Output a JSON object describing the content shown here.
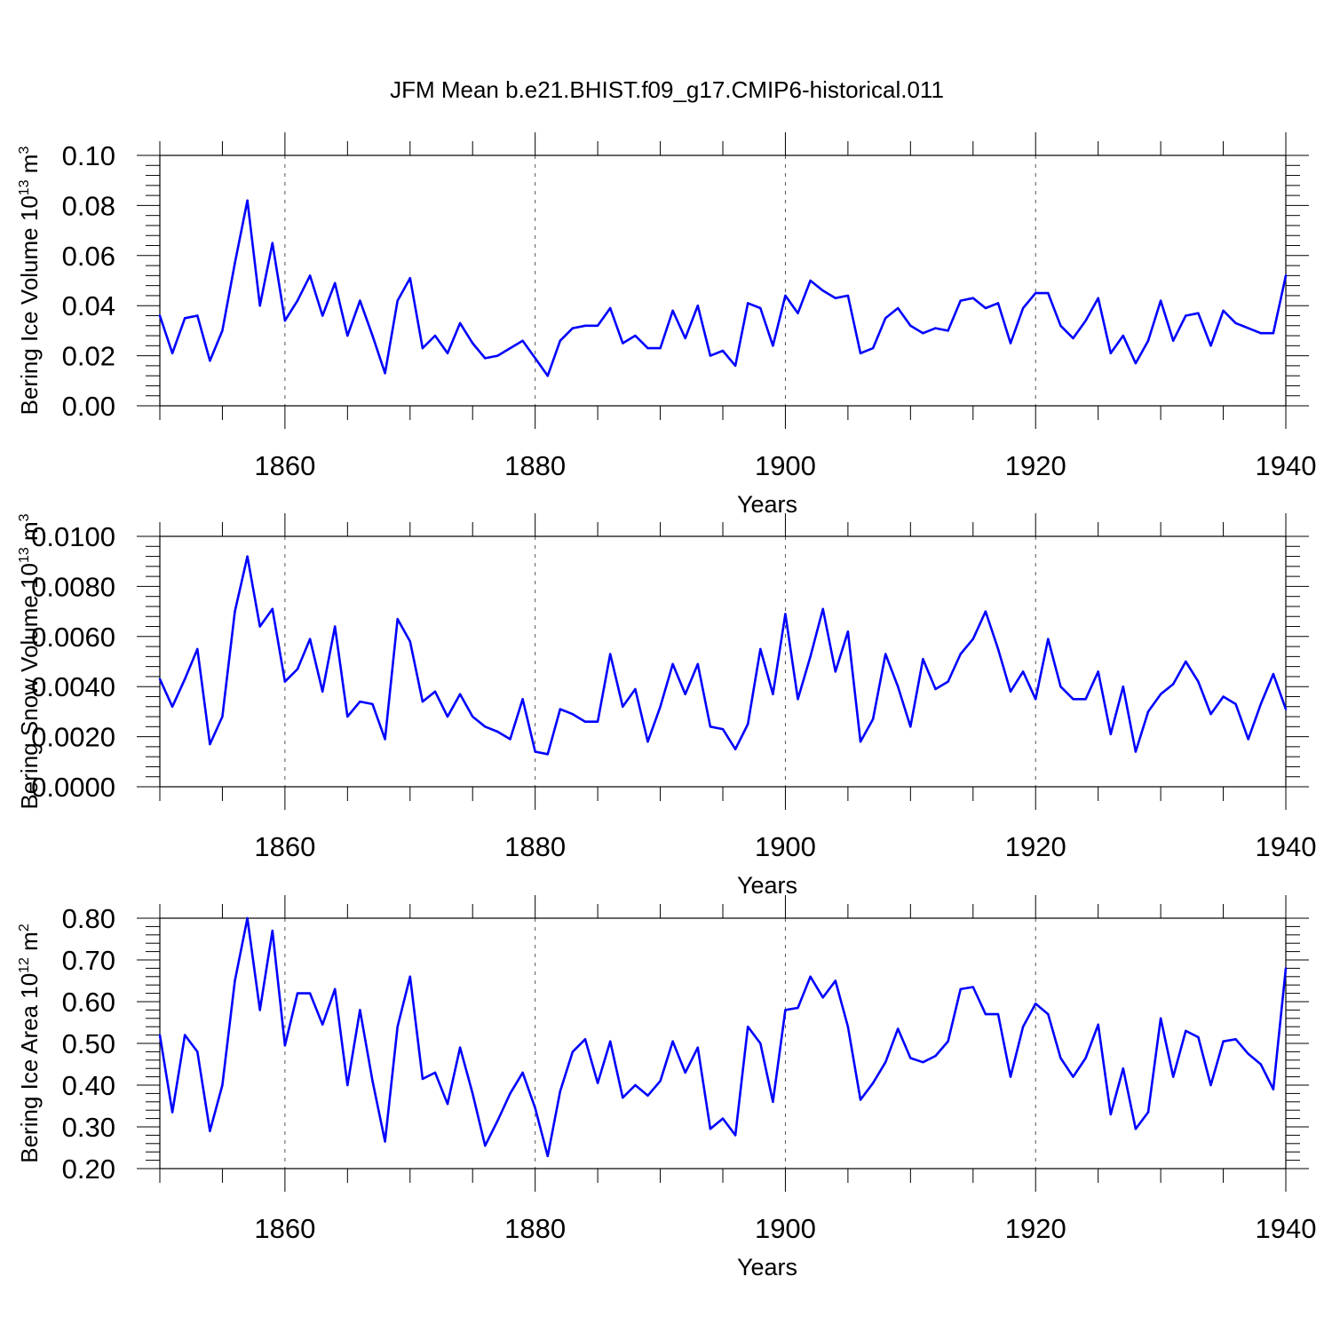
{
  "title": "JFM Mean b.e21.BHIST.f09_g17.CMIP6-historical.011",
  "colors": {
    "line": "#0000ff",
    "axis": "#000000",
    "grid": "#555555",
    "background": "#ffffff"
  },
  "chart_data": [
    {
      "type": "line",
      "ylabel": {
        "text": "Bering Ice Volume 10",
        "exponent": "13",
        "unit": "m",
        "unit_exponent": "3"
      },
      "xlabel": "Years",
      "xlim": [
        1850,
        1940
      ],
      "ylim": [
        0,
        0.1
      ],
      "xticks": [
        "1860",
        "1880",
        "1900",
        "1920",
        "1940"
      ],
      "yticks": [
        "0.00",
        "0.02",
        "0.04",
        "0.06",
        "0.08",
        "0.10"
      ],
      "x_start": 1850,
      "values": [
        0.036,
        0.021,
        0.035,
        0.036,
        0.018,
        0.03,
        0.057,
        0.082,
        0.04,
        0.065,
        0.034,
        0.042,
        0.052,
        0.036,
        0.049,
        0.028,
        0.042,
        0.028,
        0.013,
        0.042,
        0.051,
        0.023,
        0.028,
        0.021,
        0.033,
        0.025,
        0.019,
        0.02,
        0.023,
        0.026,
        0.019,
        0.012,
        0.026,
        0.031,
        0.032,
        0.032,
        0.039,
        0.025,
        0.028,
        0.023,
        0.023,
        0.038,
        0.027,
        0.04,
        0.02,
        0.022,
        0.016,
        0.041,
        0.039,
        0.024,
        0.044,
        0.037,
        0.05,
        0.046,
        0.043,
        0.044,
        0.021,
        0.023,
        0.035,
        0.039,
        0.032,
        0.029,
        0.031,
        0.03,
        0.042,
        0.043,
        0.039,
        0.041,
        0.025,
        0.039,
        0.045,
        0.045,
        0.032,
        0.027,
        0.034,
        0.043,
        0.021,
        0.028,
        0.017,
        0.026,
        0.042,
        0.026,
        0.036,
        0.037,
        0.024,
        0.038,
        0.033,
        0.031,
        0.029,
        0.029,
        0.052
      ]
    },
    {
      "type": "line",
      "ylabel": {
        "text": "Bering Snow Volume 10",
        "exponent": "13",
        "unit": "m",
        "unit_exponent": "3"
      },
      "xlabel": "Years",
      "xlim": [
        1850,
        1940
      ],
      "ylim": [
        0,
        0.01
      ],
      "xticks": [
        "1860",
        "1880",
        "1900",
        "1920",
        "1940"
      ],
      "yticks": [
        "0.0000",
        "0.0020",
        "0.0040",
        "0.0060",
        "0.0080",
        "0.0100"
      ],
      "x_start": 1850,
      "values": [
        0.0043,
        0.0032,
        0.0043,
        0.0055,
        0.0017,
        0.0028,
        0.007,
        0.0092,
        0.0064,
        0.0071,
        0.0042,
        0.0047,
        0.0059,
        0.0038,
        0.0064,
        0.0028,
        0.0034,
        0.0033,
        0.0019,
        0.0067,
        0.0058,
        0.0034,
        0.0038,
        0.0028,
        0.0037,
        0.0028,
        0.0024,
        0.0022,
        0.0019,
        0.0035,
        0.0014,
        0.0013,
        0.0031,
        0.0029,
        0.0026,
        0.0026,
        0.0053,
        0.0032,
        0.0039,
        0.0018,
        0.0032,
        0.0049,
        0.0037,
        0.0049,
        0.0024,
        0.0023,
        0.0015,
        0.0025,
        0.0055,
        0.0037,
        0.0069,
        0.0035,
        0.0052,
        0.0071,
        0.0046,
        0.0062,
        0.0018,
        0.0027,
        0.0053,
        0.004,
        0.0024,
        0.0051,
        0.0039,
        0.0042,
        0.0053,
        0.0059,
        0.007,
        0.0055,
        0.0038,
        0.0046,
        0.0035,
        0.0059,
        0.004,
        0.0035,
        0.0035,
        0.0046,
        0.0021,
        0.004,
        0.0014,
        0.003,
        0.0037,
        0.0041,
        0.005,
        0.0042,
        0.0029,
        0.0036,
        0.0033,
        0.0019,
        0.0033,
        0.0045,
        0.0031
      ]
    },
    {
      "type": "line",
      "ylabel": {
        "text": "Bering Ice Area 10",
        "exponent": "12",
        "unit": "m",
        "unit_exponent": "2"
      },
      "xlabel": "Years",
      "xlim": [
        1850,
        1940
      ],
      "ylim": [
        0.2,
        0.8
      ],
      "xticks": [
        "1860",
        "1880",
        "1900",
        "1920",
        "1940"
      ],
      "yticks": [
        "0.20",
        "0.30",
        "0.40",
        "0.50",
        "0.60",
        "0.70",
        "0.80"
      ],
      "x_start": 1850,
      "values": [
        0.52,
        0.335,
        0.52,
        0.48,
        0.29,
        0.4,
        0.65,
        0.8,
        0.58,
        0.77,
        0.495,
        0.62,
        0.62,
        0.545,
        0.63,
        0.4,
        0.58,
        0.41,
        0.265,
        0.54,
        0.66,
        0.415,
        0.43,
        0.355,
        0.49,
        0.38,
        0.255,
        0.315,
        0.38,
        0.43,
        0.345,
        0.23,
        0.385,
        0.48,
        0.51,
        0.405,
        0.505,
        0.37,
        0.4,
        0.375,
        0.41,
        0.505,
        0.43,
        0.49,
        0.295,
        0.32,
        0.28,
        0.54,
        0.5,
        0.36,
        0.58,
        0.585,
        0.66,
        0.61,
        0.65,
        0.54,
        0.365,
        0.405,
        0.455,
        0.535,
        0.465,
        0.455,
        0.47,
        0.505,
        0.63,
        0.635,
        0.57,
        0.57,
        0.42,
        0.54,
        0.595,
        0.57,
        0.465,
        0.42,
        0.465,
        0.545,
        0.33,
        0.44,
        0.295,
        0.335,
        0.56,
        0.42,
        0.53,
        0.515,
        0.4,
        0.505,
        0.51,
        0.475,
        0.45,
        0.39,
        0.68
      ]
    }
  ]
}
